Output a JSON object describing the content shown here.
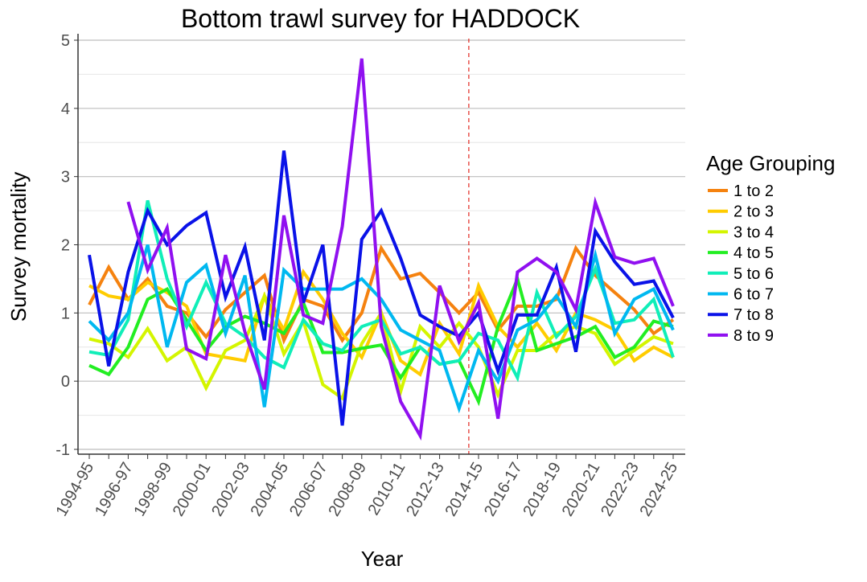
{
  "chart_data": {
    "type": "line",
    "title": "Bottom trawl survey for HADDOCK",
    "xlabel": "Year",
    "ylabel": "Survey mortality",
    "ylim": [
      -1,
      5
    ],
    "yticks": [
      -1,
      0,
      1,
      2,
      3,
      4,
      5
    ],
    "grid": true,
    "legend_position": "right",
    "legend_title": "Age Grouping",
    "categories": [
      "1994-95",
      "1995-96",
      "1996-97",
      "1997-98",
      "1998-99",
      "1999-00",
      "2000-01",
      "2001-02",
      "2002-03",
      "2003-04",
      "2004-05",
      "2005-06",
      "2006-07",
      "2007-08",
      "2008-09",
      "2009-10",
      "2010-11",
      "2011-12",
      "2012-13",
      "2013-14",
      "2014-15",
      "2015-16",
      "2016-17",
      "2017-18",
      "2018-19",
      "2019-20",
      "2020-21",
      "2021-22",
      "2022-23",
      "2023-24",
      "2024-25"
    ],
    "xtick_labels": [
      "1994-95",
      "1996-97",
      "1998-99",
      "2000-01",
      "2002-03",
      "2004-05",
      "2006-07",
      "2008-09",
      "2010-11",
      "2012-13",
      "2014-15",
      "2016-17",
      "2018-19",
      "2020-21",
      "2022-23",
      "2024-25"
    ],
    "reference_line": {
      "between": [
        "2013-14",
        "2014-15"
      ],
      "color": "#e0261e",
      "style": "dashed"
    },
    "series": [
      {
        "name": "1 to 2",
        "color": "#f5820f",
        "values": [
          1.12,
          1.67,
          1.2,
          1.5,
          1.1,
          1.0,
          0.65,
          1.05,
          1.3,
          1.55,
          0.6,
          1.2,
          1.1,
          0.6,
          1.0,
          1.95,
          1.5,
          1.58,
          1.3,
          1.0,
          1.3,
          0.75,
          1.1,
          1.1,
          1.2,
          1.95,
          1.55,
          1.3,
          1.05,
          0.7,
          0.9
        ]
      },
      {
        "name": "2 to 3",
        "color": "#ffcc00",
        "values": [
          1.4,
          1.25,
          1.2,
          1.45,
          1.3,
          1.1,
          0.4,
          0.35,
          0.3,
          1.25,
          0.75,
          1.6,
          1.2,
          0.7,
          0.35,
          1.0,
          0.3,
          0.1,
          0.85,
          0.4,
          1.4,
          0.8,
          0.5,
          0.85,
          0.45,
          1.0,
          0.9,
          0.75,
          0.3,
          0.5,
          0.35
        ]
      },
      {
        "name": "3 to 4",
        "color": "#d4f500",
        "values": [
          0.62,
          0.55,
          0.35,
          0.77,
          0.3,
          0.5,
          -0.1,
          0.45,
          0.6,
          1.25,
          0.4,
          0.88,
          -0.05,
          -0.25,
          0.55,
          1.0,
          -0.15,
          0.8,
          0.5,
          0.85,
          0.5,
          -0.2,
          0.45,
          0.45,
          0.7,
          0.8,
          0.7,
          0.25,
          0.45,
          0.65,
          0.55
        ]
      },
      {
        "name": "4 to 5",
        "color": "#22ee22",
        "values": [
          0.23,
          0.1,
          0.5,
          1.2,
          1.35,
          0.9,
          0.45,
          0.8,
          0.95,
          0.85,
          0.7,
          1.15,
          0.42,
          0.42,
          0.48,
          0.53,
          0.05,
          0.5,
          0.25,
          0.3,
          -0.3,
          0.8,
          1.5,
          0.45,
          0.55,
          0.65,
          0.8,
          0.35,
          0.5,
          0.88,
          0.8
        ]
      },
      {
        "name": "5 to 6",
        "color": "#10eeb8",
        "values": [
          0.43,
          0.38,
          0.9,
          2.65,
          1.5,
          0.8,
          1.45,
          0.85,
          0.65,
          0.35,
          0.2,
          0.9,
          0.55,
          0.45,
          0.8,
          0.9,
          0.4,
          0.5,
          0.25,
          0.3,
          0.7,
          0.6,
          0.05,
          1.3,
          0.65,
          0.95,
          1.65,
          0.85,
          0.9,
          1.2,
          0.35
        ]
      },
      {
        "name": "6 to 7",
        "color": "#00b8f0",
        "values": [
          0.88,
          0.6,
          1.0,
          2.0,
          0.5,
          1.45,
          1.7,
          0.7,
          1.55,
          -0.38,
          1.63,
          1.35,
          1.35,
          1.35,
          1.5,
          1.2,
          0.75,
          0.6,
          0.45,
          -0.4,
          0.45,
          0.0,
          0.75,
          0.9,
          1.25,
          0.8,
          1.85,
          0.7,
          1.2,
          1.35,
          0.75
        ]
      },
      {
        "name": "7 to 8",
        "color": "#0a12e8",
        "values": [
          1.85,
          0.22,
          1.6,
          2.5,
          2.0,
          2.28,
          2.47,
          1.23,
          1.97,
          0.6,
          3.38,
          1.15,
          2.0,
          -0.65,
          2.08,
          2.5,
          1.8,
          0.97,
          0.8,
          0.66,
          1.0,
          0.15,
          0.97,
          0.97,
          1.67,
          0.43,
          2.2,
          1.75,
          1.42,
          1.47,
          0.93
        ]
      },
      {
        "name": "8 to 9",
        "color": "#9010f0",
        "values": [
          null,
          null,
          2.63,
          1.63,
          2.25,
          0.47,
          0.33,
          1.85,
          0.72,
          -0.12,
          2.43,
          0.97,
          0.85,
          2.27,
          4.73,
          0.8,
          -0.3,
          -0.8,
          1.4,
          0.58,
          1.15,
          -0.55,
          1.6,
          1.8,
          1.6,
          1.05,
          2.62,
          1.82,
          1.73,
          1.8,
          1.1
        ]
      }
    ]
  }
}
